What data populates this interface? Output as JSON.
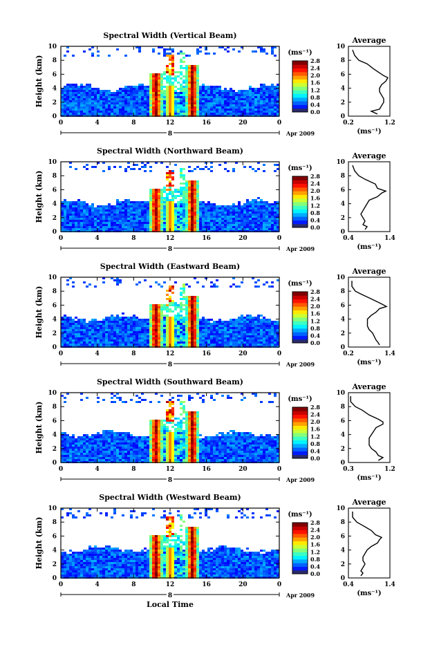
{
  "figure": {
    "xlabel": "Local Time",
    "date_label": "Apr 2009",
    "day_label": "8",
    "ylabel": "Height (km)",
    "avg_title": "Average",
    "unit_label": "(ms⁻¹)",
    "avg_xlabel": "(ms⁻¹)"
  },
  "chart_data": [
    {
      "type": "heatmap",
      "title": "Spectral Width (Vertical Beam)",
      "x_ticks": [
        "0",
        "4",
        "8",
        "12",
        "16",
        "20",
        "0"
      ],
      "xlim": [
        0,
        24
      ],
      "y_ticks": [
        "0",
        "2",
        "4",
        "6",
        "8",
        "10"
      ],
      "ylim": [
        0,
        10
      ],
      "colorbar": {
        "ticks": [
          "0.0",
          "0.4",
          "0.8",
          "1.2",
          "1.6",
          "2.0",
          "2.4",
          "2.8"
        ],
        "range": [
          0.0,
          2.8
        ]
      },
      "avg_profile": {
        "xlim": [
          0.2,
          1.2
        ],
        "x_ticks": [
          "0.2",
          "1.2"
        ],
        "height": [
          0.3,
          0.7,
          1.0,
          1.5,
          2.0,
          2.5,
          3.0,
          3.5,
          4.0,
          4.5,
          5.0,
          5.5,
          5.8,
          6.2,
          6.8,
          7.5,
          8.0,
          8.7,
          9.5
        ],
        "values": [
          0.9,
          0.75,
          0.95,
          1.0,
          1.05,
          1.05,
          1.0,
          0.95,
          0.95,
          1.0,
          1.1,
          1.15,
          1.05,
          0.95,
          0.8,
          0.65,
          0.45,
          0.35,
          0.3
        ]
      }
    },
    {
      "type": "heatmap",
      "title": "Spectral Width (Northward Beam)",
      "x_ticks": [
        "0",
        "4",
        "8",
        "12",
        "16",
        "20",
        "0"
      ],
      "xlim": [
        0,
        24
      ],
      "y_ticks": [
        "0",
        "2",
        "4",
        "6",
        "8",
        "10"
      ],
      "ylim": [
        0,
        10
      ],
      "colorbar": {
        "ticks": [
          "0.0",
          "0.4",
          "0.8",
          "1.2",
          "1.6",
          "2.0",
          "2.4",
          "2.8"
        ],
        "range": [
          0.0,
          2.8
        ]
      },
      "avg_profile": {
        "xlim": [
          0.4,
          1.4
        ],
        "x_ticks": [
          "0.4",
          "1.4"
        ],
        "height": [
          0.3,
          0.7,
          1.0,
          1.5,
          2.0,
          2.5,
          3.0,
          3.5,
          4.0,
          4.5,
          5.0,
          5.5,
          5.8,
          6.2,
          6.8,
          7.5,
          8.0,
          8.7,
          9.5
        ],
        "values": [
          0.8,
          0.85,
          0.75,
          0.8,
          0.75,
          0.7,
          0.75,
          0.8,
          0.85,
          0.9,
          1.1,
          1.2,
          1.3,
          1.1,
          1.05,
          0.8,
          0.65,
          0.55,
          0.5
        ]
      }
    },
    {
      "type": "heatmap",
      "title": "Spectral Width (Eastward Beam)",
      "x_ticks": [
        "0",
        "4",
        "8",
        "12",
        "16",
        "20",
        "0"
      ],
      "xlim": [
        0,
        24
      ],
      "y_ticks": [
        "0",
        "2",
        "4",
        "6",
        "8",
        "10"
      ],
      "ylim": [
        0,
        10
      ],
      "colorbar": {
        "ticks": [
          "0.0",
          "0.4",
          "0.8",
          "1.2",
          "1.6",
          "2.0",
          "2.4",
          "2.8"
        ],
        "range": [
          0.0,
          2.8
        ]
      },
      "avg_profile": {
        "xlim": [
          0.2,
          1.4
        ],
        "x_ticks": [
          "0.2",
          "1.4"
        ],
        "height": [
          0.3,
          0.7,
          1.0,
          1.5,
          2.0,
          2.5,
          3.0,
          3.5,
          4.0,
          4.5,
          5.0,
          5.5,
          5.8,
          6.2,
          6.8,
          7.5,
          8.0,
          8.7,
          9.5
        ],
        "values": [
          1.1,
          1.05,
          1.0,
          0.95,
          0.9,
          0.8,
          0.75,
          0.75,
          0.75,
          0.85,
          1.0,
          1.1,
          1.3,
          1.15,
          0.9,
          0.6,
          0.4,
          0.3,
          0.3
        ]
      }
    },
    {
      "type": "heatmap",
      "title": "Spectral Width (Southward Beam)",
      "x_ticks": [
        "0",
        "4",
        "8",
        "12",
        "16",
        "20",
        "0"
      ],
      "xlim": [
        0,
        24
      ],
      "y_ticks": [
        "0",
        "2",
        "4",
        "6",
        "8",
        "10"
      ],
      "ylim": [
        0,
        10
      ],
      "colorbar": {
        "ticks": [
          "0.0",
          "0.4",
          "0.8",
          "1.2",
          "1.6",
          "2.0",
          "2.4",
          "2.8"
        ],
        "range": [
          0.0,
          2.8
        ]
      },
      "avg_profile": {
        "xlim": [
          0.3,
          1.2
        ],
        "x_ticks": [
          "0.3",
          "1.2"
        ],
        "height": [
          0.3,
          0.7,
          1.0,
          1.5,
          2.0,
          2.5,
          3.0,
          3.5,
          4.0,
          4.5,
          5.0,
          5.5,
          5.8,
          6.2,
          6.8,
          7.5,
          8.0,
          8.7,
          9.5
        ],
        "values": [
          0.95,
          1.05,
          0.95,
          0.9,
          0.8,
          0.75,
          0.75,
          0.75,
          0.8,
          0.85,
          0.9,
          1.05,
          1.05,
          0.95,
          0.75,
          0.6,
          0.45,
          0.35,
          0.35
        ]
      }
    },
    {
      "type": "heatmap",
      "title": "Spectral Width (Westward Beam)",
      "x_ticks": [
        "0",
        "4",
        "8",
        "12",
        "16",
        "20",
        "0"
      ],
      "xlim": [
        0,
        24
      ],
      "y_ticks": [
        "0",
        "2",
        "4",
        "6",
        "8",
        "10"
      ],
      "ylim": [
        0,
        10
      ],
      "colorbar": {
        "ticks": [
          "0.0",
          "0.4",
          "0.8",
          "1.2",
          "1.6",
          "2.0",
          "2.4",
          "2.8"
        ],
        "range": [
          0.0,
          2.8
        ]
      },
      "avg_profile": {
        "xlim": [
          0.4,
          1.4
        ],
        "x_ticks": [
          "0.4",
          "1.4"
        ],
        "height": [
          0.3,
          0.7,
          1.0,
          1.5,
          2.0,
          2.5,
          3.0,
          3.5,
          4.0,
          4.5,
          5.0,
          5.5,
          5.8,
          6.2,
          6.8,
          7.5,
          8.0,
          8.7,
          9.5
        ],
        "values": [
          0.7,
          0.75,
          0.7,
          0.75,
          0.8,
          0.75,
          0.75,
          0.8,
          0.85,
          0.95,
          1.1,
          1.15,
          1.2,
          1.05,
          0.95,
          0.75,
          0.6,
          0.5,
          0.5
        ]
      }
    }
  ]
}
